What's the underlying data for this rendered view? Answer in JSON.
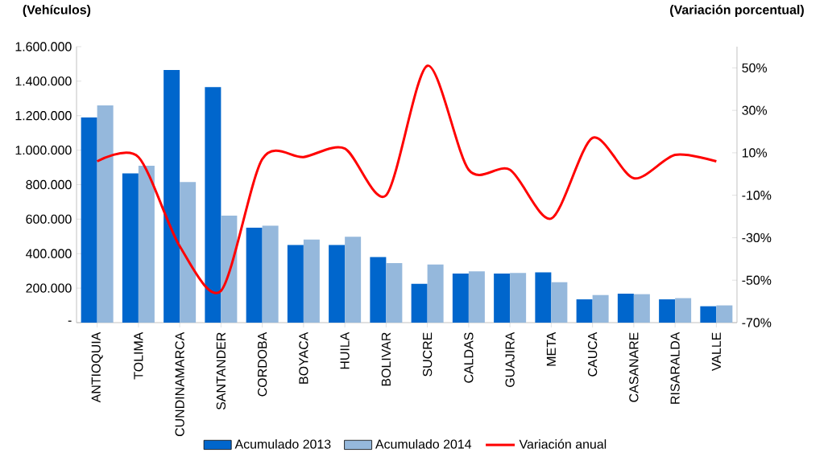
{
  "chart_data": {
    "type": "bar",
    "ylabel": "(Vehículos)",
    "y2label": "(Variación porcentual)",
    "categories": [
      "ANTIOQUIA",
      "TOLIMA",
      "CUNDINAMARCA",
      "SANTANDER",
      "CORDOBA",
      "BOYACA",
      "HUILA",
      "BOLIVAR",
      "SUCRE",
      "CALDAS",
      "GUAJIRA",
      "META",
      "CAUCA",
      "CASANARE",
      "RISARALDA",
      "VALLE"
    ],
    "series": [
      {
        "name": "Acumulado 2013",
        "color": "#0066cc",
        "values": [
          1190000,
          865000,
          1465000,
          1365000,
          550000,
          450000,
          450000,
          380000,
          225000,
          285000,
          285000,
          292000,
          135000,
          168000,
          135000,
          95000
        ]
      },
      {
        "name": "Acumulado 2014",
        "color": "#95b8dc",
        "values": [
          1260000,
          910000,
          815000,
          620000,
          562000,
          482000,
          498000,
          345000,
          337000,
          297000,
          288000,
          234000,
          160000,
          165000,
          142000,
          100000
        ]
      },
      {
        "name": "Variación anual",
        "color": "#ff0000",
        "type": "line",
        "axis": "y2",
        "values": [
          6,
          8,
          -34,
          -55,
          7,
          8,
          12,
          -10,
          51,
          2,
          2,
          -21,
          17,
          -2,
          9,
          6
        ]
      }
    ],
    "ylim": [
      0,
      1600000
    ],
    "yticks": [
      {
        "value": 0,
        "label": "-"
      },
      {
        "value": 200000,
        "label": "200.000"
      },
      {
        "value": 400000,
        "label": "400.000"
      },
      {
        "value": 600000,
        "label": "600.000"
      },
      {
        "value": 800000,
        "label": "800.000"
      },
      {
        "value": 1000000,
        "label": "1.000.000"
      },
      {
        "value": 1200000,
        "label": "1.200.000"
      },
      {
        "value": 1400000,
        "label": "1.400.000"
      },
      {
        "value": 1600000,
        "label": "1.600.000"
      }
    ],
    "y2lim": [
      -70,
      60
    ],
    "y2ticks": [
      {
        "value": -70,
        "label": "-70%"
      },
      {
        "value": -50,
        "label": "-50%"
      },
      {
        "value": -30,
        "label": "-30%"
      },
      {
        "value": -10,
        "label": "-10%"
      },
      {
        "value": 10,
        "label": "10%"
      },
      {
        "value": 30,
        "label": "30%"
      },
      {
        "value": 50,
        "label": "50%"
      }
    ],
    "legend": "bottom",
    "marker": "none",
    "line_style": "solid"
  }
}
